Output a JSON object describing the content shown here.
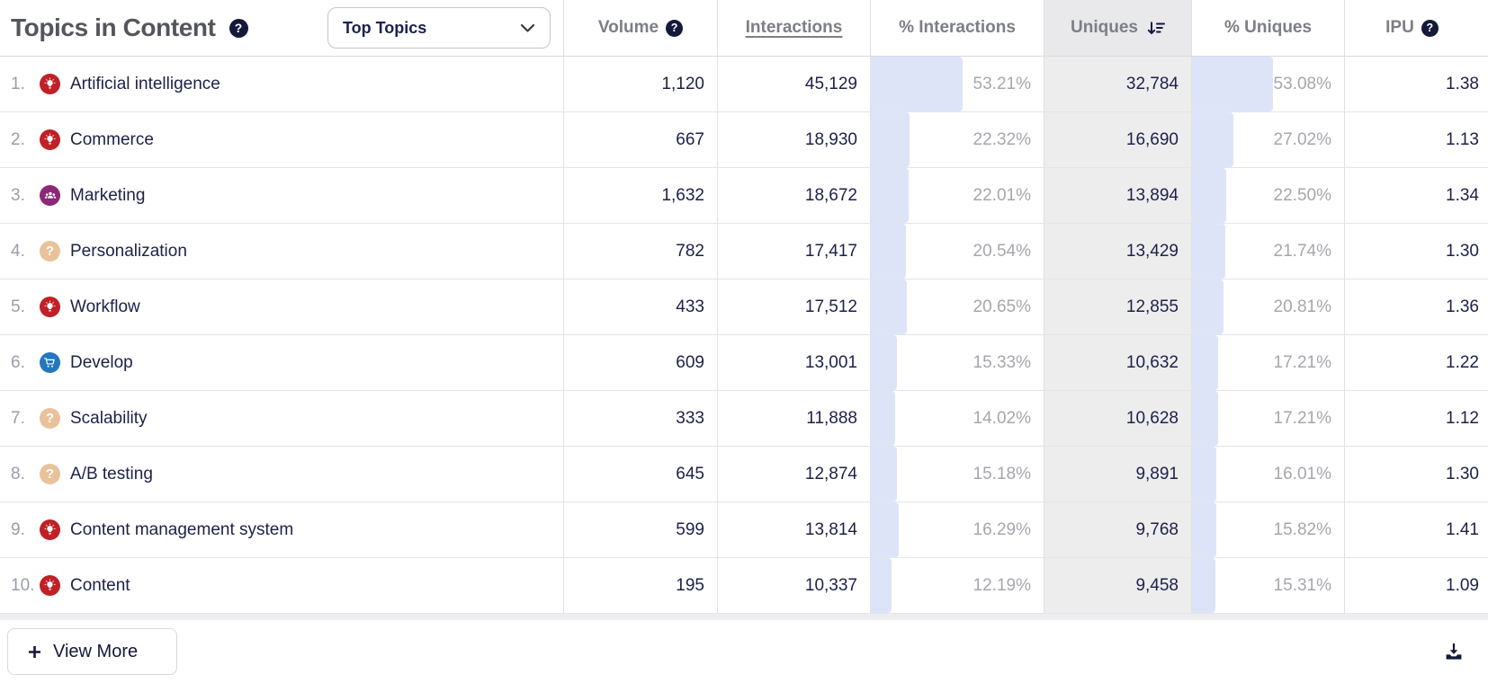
{
  "colors": {
    "accent_bar": "#dee4f8",
    "sorted_column_bg": "#ededee",
    "sorted_header_bg": "#e9e9ec",
    "navy_text": "#1c2148",
    "topic_icon_red": "#bf2126",
    "topic_icon_purple": "#8d2778",
    "topic_icon_tan": "#e9c29b",
    "topic_icon_blue": "#2377c0"
  },
  "icons": {
    "help_glyph": "?",
    "question_glyph": "?"
  },
  "header": {
    "title": "Topics in Content",
    "dropdown_value": "Top Topics"
  },
  "table": {
    "columns": [
      {
        "label": "Volume",
        "help": true
      },
      {
        "label": "Interactions",
        "underlined": true
      },
      {
        "label": "% Interactions"
      },
      {
        "label": "Uniques",
        "sorted": "descending",
        "highlighted": true
      },
      {
        "label": "% Uniques"
      },
      {
        "label": "IPU",
        "help": true
      }
    ],
    "rows": [
      {
        "rank": "1.",
        "icon": "lightbulb",
        "icon_color": "#bf2126",
        "topic": "Artificial intelligence",
        "volume": "1,120",
        "interactions": "45,129",
        "pct_interactions": "53.21%",
        "pct_interactions_value": 53.21,
        "uniques": "32,784",
        "pct_uniques": "53.08%",
        "pct_uniques_value": 53.08,
        "ipu": "1.38"
      },
      {
        "rank": "2.",
        "icon": "lightbulb",
        "icon_color": "#bf2126",
        "topic": "Commerce",
        "volume": "667",
        "interactions": "18,930",
        "pct_interactions": "22.32%",
        "pct_interactions_value": 22.32,
        "uniques": "16,690",
        "pct_uniques": "27.02%",
        "pct_uniques_value": 27.02,
        "ipu": "1.13"
      },
      {
        "rank": "3.",
        "icon": "people",
        "icon_color": "#8d2778",
        "topic": "Marketing",
        "volume": "1,632",
        "interactions": "18,672",
        "pct_interactions": "22.01%",
        "pct_interactions_value": 22.01,
        "uniques": "13,894",
        "pct_uniques": "22.50%",
        "pct_uniques_value": 22.5,
        "ipu": "1.34"
      },
      {
        "rank": "4.",
        "icon": "question",
        "icon_color": "#e9c29b",
        "topic": "Personalization",
        "volume": "782",
        "interactions": "17,417",
        "pct_interactions": "20.54%",
        "pct_interactions_value": 20.54,
        "uniques": "13,429",
        "pct_uniques": "21.74%",
        "pct_uniques_value": 21.74,
        "ipu": "1.30"
      },
      {
        "rank": "5.",
        "icon": "lightbulb",
        "icon_color": "#bf2126",
        "topic": "Workflow",
        "volume": "433",
        "interactions": "17,512",
        "pct_interactions": "20.65%",
        "pct_interactions_value": 20.65,
        "uniques": "12,855",
        "pct_uniques": "20.81%",
        "pct_uniques_value": 20.81,
        "ipu": "1.36"
      },
      {
        "rank": "6.",
        "icon": "cart",
        "icon_color": "#2377c0",
        "topic": "Develop",
        "volume": "609",
        "interactions": "13,001",
        "pct_interactions": "15.33%",
        "pct_interactions_value": 15.33,
        "uniques": "10,632",
        "pct_uniques": "17.21%",
        "pct_uniques_value": 17.21,
        "ipu": "1.22"
      },
      {
        "rank": "7.",
        "icon": "question",
        "icon_color": "#e9c29b",
        "topic": "Scalability",
        "volume": "333",
        "interactions": "11,888",
        "pct_interactions": "14.02%",
        "pct_interactions_value": 14.02,
        "uniques": "10,628",
        "pct_uniques": "17.21%",
        "pct_uniques_value": 17.21,
        "ipu": "1.12"
      },
      {
        "rank": "8.",
        "icon": "question",
        "icon_color": "#e9c29b",
        "topic": "A/B testing",
        "volume": "645",
        "interactions": "12,874",
        "pct_interactions": "15.18%",
        "pct_interactions_value": 15.18,
        "uniques": "9,891",
        "pct_uniques": "16.01%",
        "pct_uniques_value": 16.01,
        "ipu": "1.30"
      },
      {
        "rank": "9.",
        "icon": "lightbulb",
        "icon_color": "#bf2126",
        "topic": "Content management system",
        "volume": "599",
        "interactions": "13,814",
        "pct_interactions": "16.29%",
        "pct_interactions_value": 16.29,
        "uniques": "9,768",
        "pct_uniques": "15.82%",
        "pct_uniques_value": 15.82,
        "ipu": "1.41"
      },
      {
        "rank": "10.",
        "icon": "lightbulb",
        "icon_color": "#bf2126",
        "topic": "Content",
        "volume": "195",
        "interactions": "10,337",
        "pct_interactions": "12.19%",
        "pct_interactions_value": 12.19,
        "uniques": "9,458",
        "pct_uniques": "15.31%",
        "pct_uniques_value": 15.31,
        "ipu": "1.09"
      }
    ]
  },
  "footer": {
    "view_more_label": "View More"
  }
}
